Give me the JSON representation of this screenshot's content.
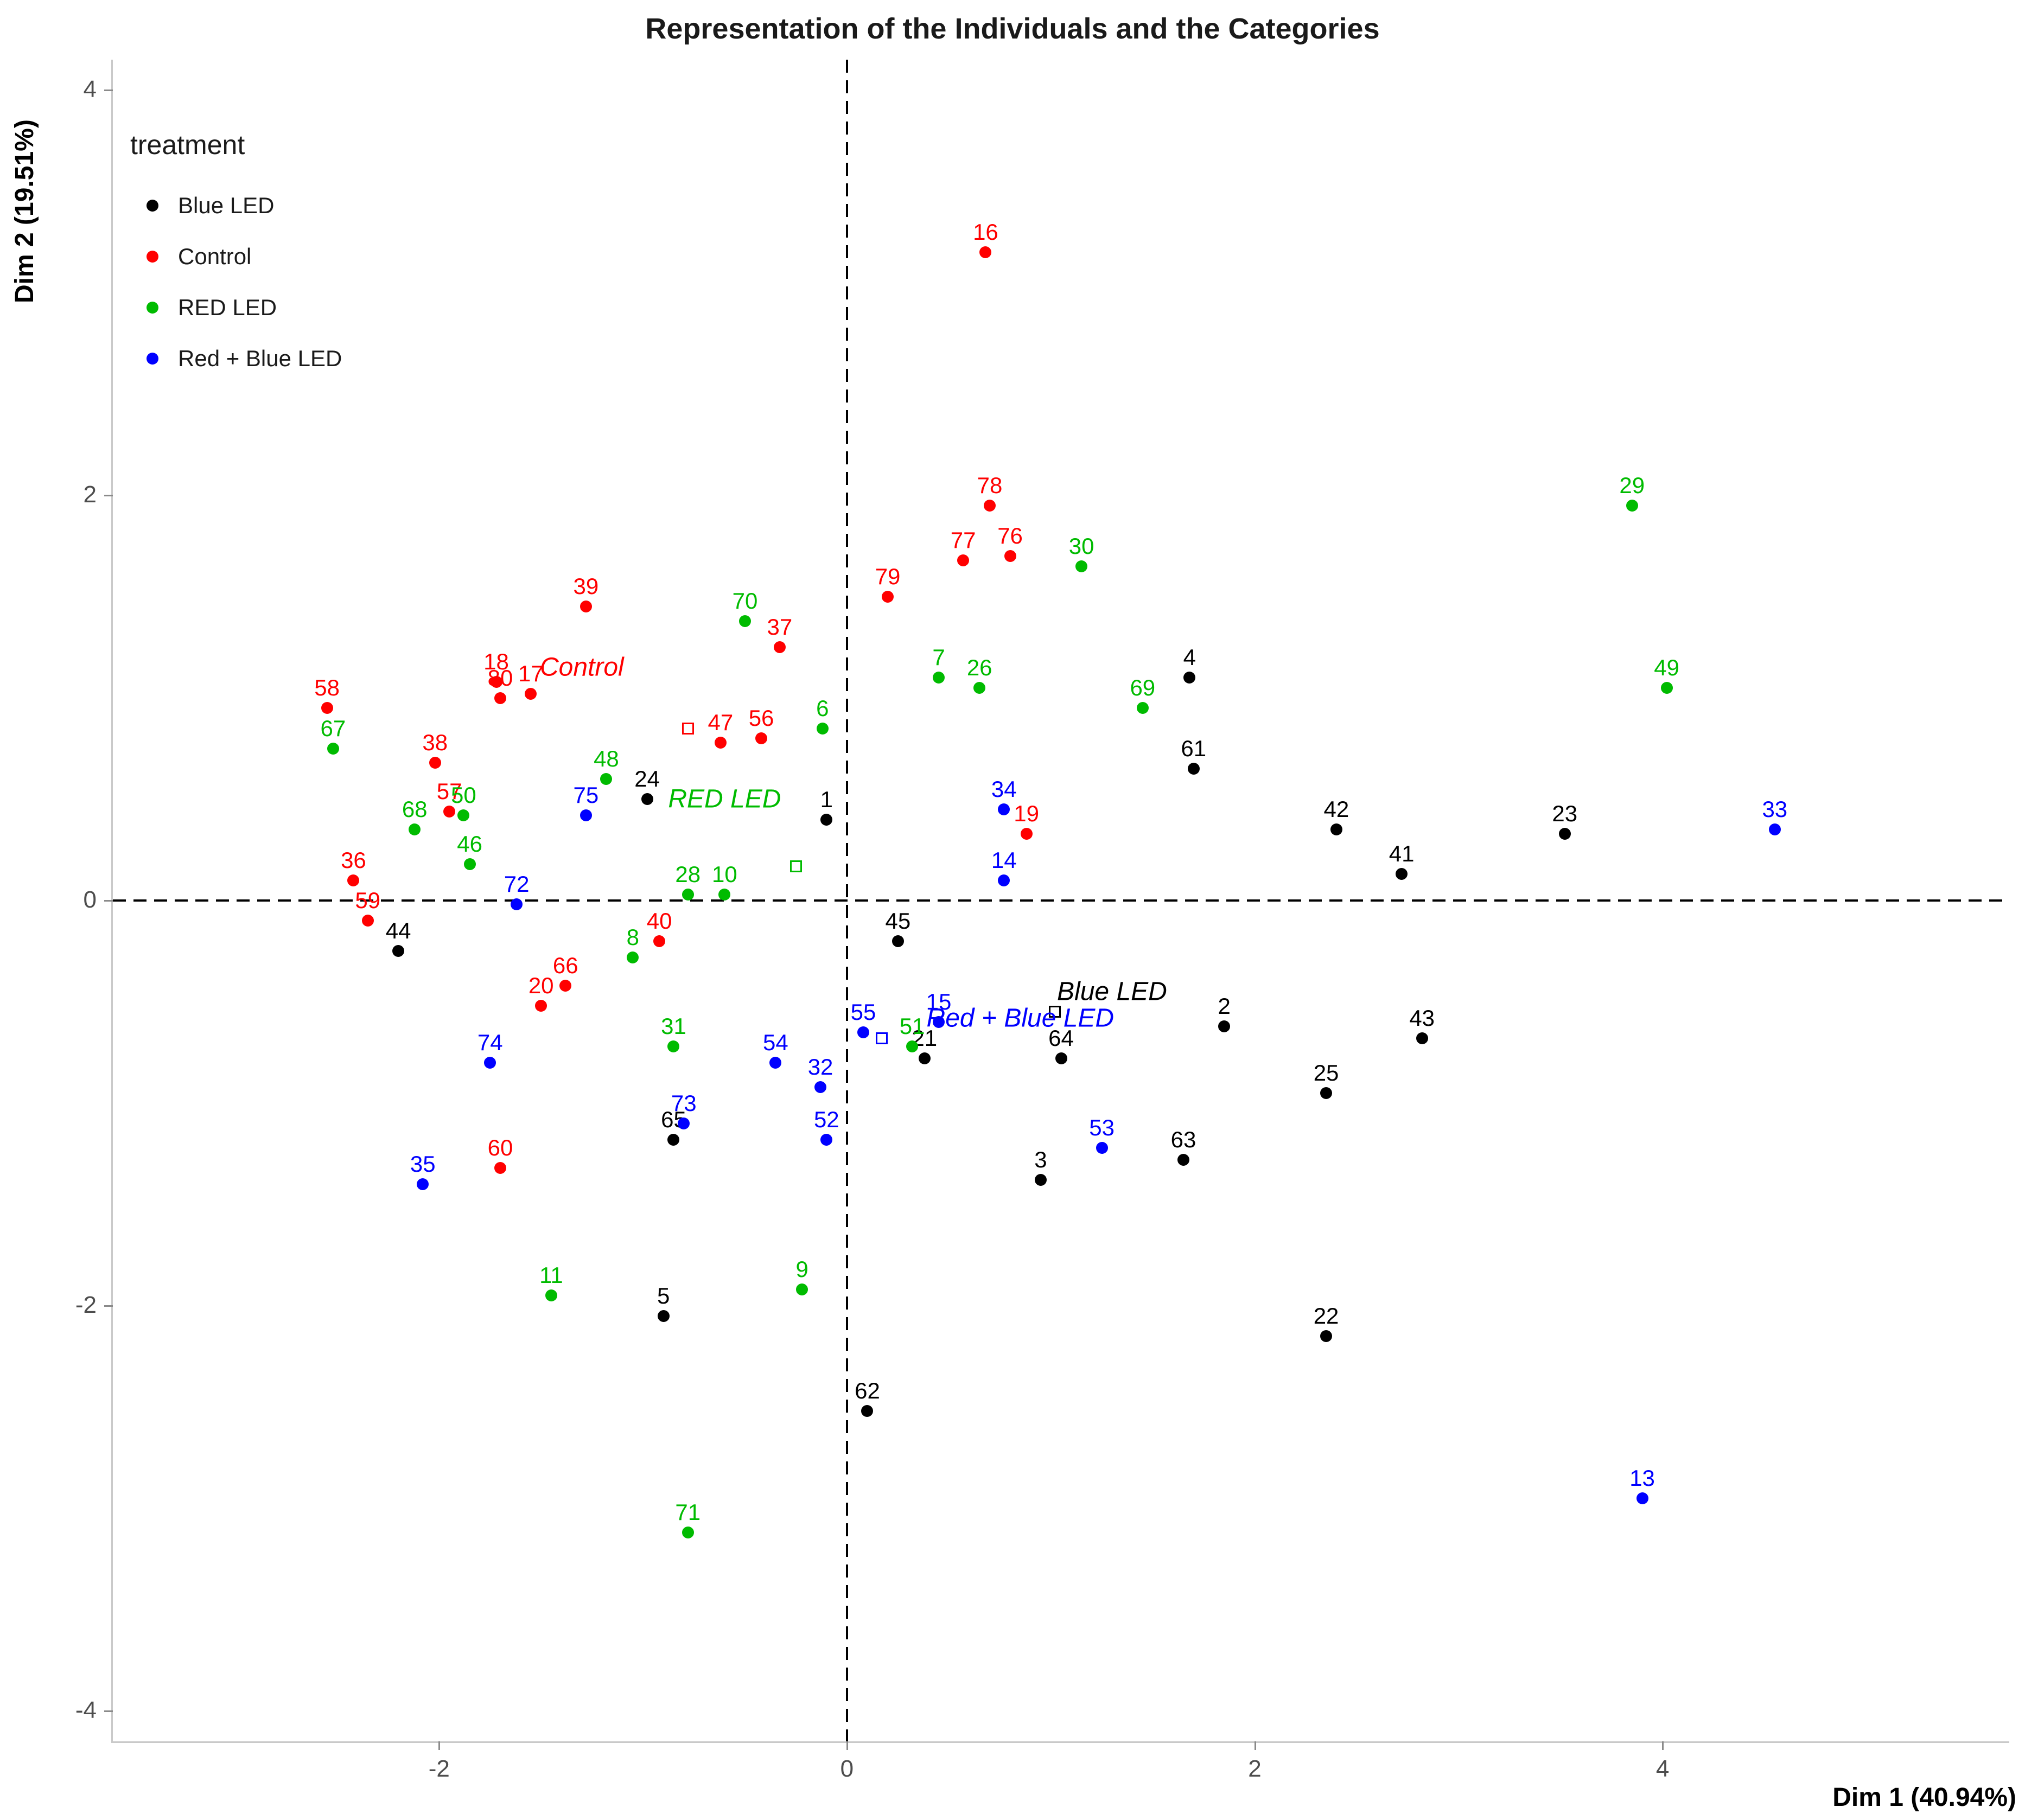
{
  "chart_data": {
    "type": "scatter",
    "title": "Representation of the Individuals and the Categories",
    "xlabel": "Dim 1 (40.94%)",
    "ylabel": "Dim 2 (19.51%)",
    "xlim": [
      -3.6,
      5.7
    ],
    "ylim": [
      -4.15,
      4.15
    ],
    "xticks": [
      -2,
      0,
      2,
      4
    ],
    "yticks": [
      -4,
      -2,
      0,
      2,
      4
    ],
    "grid": false,
    "reference_lines": {
      "x": 0,
      "y": 0,
      "style": "dashed"
    },
    "legend": {
      "title": "treatment",
      "position": "top-left-inside",
      "items": [
        {
          "label": "Blue LED",
          "color": "#000000"
        },
        {
          "label": "Control",
          "color": "#ff0000"
        },
        {
          "label": "RED LED",
          "color": "#00bb00"
        },
        {
          "label": "Red + Blue LED",
          "color": "#0000ff"
        }
      ]
    },
    "series": [
      {
        "name": "Blue LED",
        "color": "#000000",
        "points": [
          {
            "n": "1",
            "x": -0.1,
            "y": 0.4
          },
          {
            "n": "2",
            "x": 1.85,
            "y": -0.62
          },
          {
            "n": "3",
            "x": 0.95,
            "y": -1.38
          },
          {
            "n": "4",
            "x": 1.68,
            "y": 1.1
          },
          {
            "n": "5",
            "x": -0.9,
            "y": -2.05
          },
          {
            "n": "21",
            "x": 0.38,
            "y": -0.78
          },
          {
            "n": "22",
            "x": 2.35,
            "y": -2.15
          },
          {
            "n": "23",
            "x": 3.52,
            "y": 0.33
          },
          {
            "n": "24",
            "x": -0.98,
            "y": 0.5
          },
          {
            "n": "25",
            "x": 2.35,
            "y": -0.95
          },
          {
            "n": "41",
            "x": 2.72,
            "y": 0.13
          },
          {
            "n": "42",
            "x": 2.4,
            "y": 0.35
          },
          {
            "n": "43",
            "x": 2.82,
            "y": -0.68
          },
          {
            "n": "44",
            "x": -2.2,
            "y": -0.25
          },
          {
            "n": "45",
            "x": 0.25,
            "y": -0.2
          },
          {
            "n": "61",
            "x": 1.7,
            "y": 0.65
          },
          {
            "n": "62",
            "x": 0.1,
            "y": -2.52
          },
          {
            "n": "63",
            "x": 1.65,
            "y": -1.28
          },
          {
            "n": "64",
            "x": 1.05,
            "y": -0.78
          },
          {
            "n": "65",
            "x": -0.85,
            "y": -1.18
          }
        ]
      },
      {
        "name": "Control",
        "color": "#ff0000",
        "points": [
          {
            "n": "16",
            "x": 0.68,
            "y": 3.2
          },
          {
            "n": "17",
            "x": -1.55,
            "y": 1.02
          },
          {
            "n": "18",
            "x": -1.72,
            "y": 1.08
          },
          {
            "n": "19",
            "x": 0.88,
            "y": 0.33
          },
          {
            "n": "20",
            "x": -1.5,
            "y": -0.52
          },
          {
            "n": "36",
            "x": -2.42,
            "y": 0.1
          },
          {
            "n": "37",
            "x": -0.33,
            "y": 1.25
          },
          {
            "n": "38",
            "x": -2.02,
            "y": 0.68
          },
          {
            "n": "39",
            "x": -1.28,
            "y": 1.45
          },
          {
            "n": "40",
            "x": -0.92,
            "y": -0.2
          },
          {
            "n": "47",
            "x": -0.62,
            "y": 0.78
          },
          {
            "n": "56",
            "x": -0.42,
            "y": 0.8
          },
          {
            "n": "57",
            "x": -1.95,
            "y": 0.44
          },
          {
            "n": "58",
            "x": -2.55,
            "y": 0.95
          },
          {
            "n": "59",
            "x": -2.35,
            "y": -0.1
          },
          {
            "n": "60",
            "x": -1.7,
            "y": -1.32
          },
          {
            "n": "66",
            "x": -1.38,
            "y": -0.42
          },
          {
            "n": "76",
            "x": 0.8,
            "y": 1.7
          },
          {
            "n": "77",
            "x": 0.57,
            "y": 1.68
          },
          {
            "n": "78",
            "x": 0.7,
            "y": 1.95
          },
          {
            "n": "79",
            "x": 0.2,
            "y": 1.5
          },
          {
            "n": "80",
            "x": -1.7,
            "y": 1.0
          }
        ]
      },
      {
        "name": "RED LED",
        "color": "#00bb00",
        "points": [
          {
            "n": "6",
            "x": -0.12,
            "y": 0.85
          },
          {
            "n": "7",
            "x": 0.45,
            "y": 1.1
          },
          {
            "n": "8",
            "x": -1.05,
            "y": -0.28
          },
          {
            "n": "9",
            "x": -0.22,
            "y": -1.92
          },
          {
            "n": "10",
            "x": -0.6,
            "y": 0.03
          },
          {
            "n": "11",
            "x": -1.45,
            "y": -1.95
          },
          {
            "n": "26",
            "x": 0.65,
            "y": 1.05
          },
          {
            "n": "28",
            "x": -0.78,
            "y": 0.03
          },
          {
            "n": "29",
            "x": 3.85,
            "y": 1.95
          },
          {
            "n": "30",
            "x": 1.15,
            "y": 1.65
          },
          {
            "n": "31",
            "x": -0.85,
            "y": -0.72
          },
          {
            "n": "46",
            "x": -1.85,
            "y": 0.18
          },
          {
            "n": "48",
            "x": -1.18,
            "y": 0.6
          },
          {
            "n": "49",
            "x": 4.02,
            "y": 1.05
          },
          {
            "n": "50",
            "x": -1.88,
            "y": 0.42
          },
          {
            "n": "51",
            "x": 0.32,
            "y": -0.72
          },
          {
            "n": "67",
            "x": -2.52,
            "y": 0.75
          },
          {
            "n": "68",
            "x": -2.12,
            "y": 0.35
          },
          {
            "n": "69",
            "x": 1.45,
            "y": 0.95
          },
          {
            "n": "70",
            "x": -0.5,
            "y": 1.38
          },
          {
            "n": "71",
            "x": -0.78,
            "y": -3.12
          }
        ]
      },
      {
        "name": "Red + Blue LED",
        "color": "#0000ff",
        "points": [
          {
            "n": "13",
            "x": 3.9,
            "y": -2.95
          },
          {
            "n": "14",
            "x": 0.77,
            "y": 0.1
          },
          {
            "n": "15",
            "x": 0.45,
            "y": -0.6
          },
          {
            "n": "32",
            "x": -0.13,
            "y": -0.92
          },
          {
            "n": "33",
            "x": 4.55,
            "y": 0.35
          },
          {
            "n": "34",
            "x": 0.77,
            "y": 0.45
          },
          {
            "n": "35",
            "x": -2.08,
            "y": -1.4
          },
          {
            "n": "52",
            "x": -0.1,
            "y": -1.18
          },
          {
            "n": "53",
            "x": 1.25,
            "y": -1.22
          },
          {
            "n": "54",
            "x": -0.35,
            "y": -0.8
          },
          {
            "n": "55",
            "x": 0.08,
            "y": -0.65
          },
          {
            "n": "72",
            "x": -1.62,
            "y": -0.02
          },
          {
            "n": "73",
            "x": -0.8,
            "y": -1.1
          },
          {
            "n": "74",
            "x": -1.75,
            "y": -0.8
          },
          {
            "n": "75",
            "x": -1.28,
            "y": 0.42
          }
        ]
      }
    ],
    "category_points": [
      {
        "label": "Control",
        "color": "#ff0000",
        "x": -0.78,
        "y": 0.85,
        "label_x": -1.3,
        "label_y": 1.15
      },
      {
        "label": "RED LED",
        "color": "#00bb00",
        "x": -0.25,
        "y": 0.17,
        "label_x": -0.6,
        "label_y": 0.5
      },
      {
        "label": "Blue LED",
        "color": "#000000",
        "x": 1.02,
        "y": -0.55,
        "label_x": 1.3,
        "label_y": -0.45
      },
      {
        "label": "Red + Blue LED",
        "color": "#0000ff",
        "x": 0.17,
        "y": -0.68,
        "label_x": 0.85,
        "label_y": -0.58
      }
    ]
  }
}
